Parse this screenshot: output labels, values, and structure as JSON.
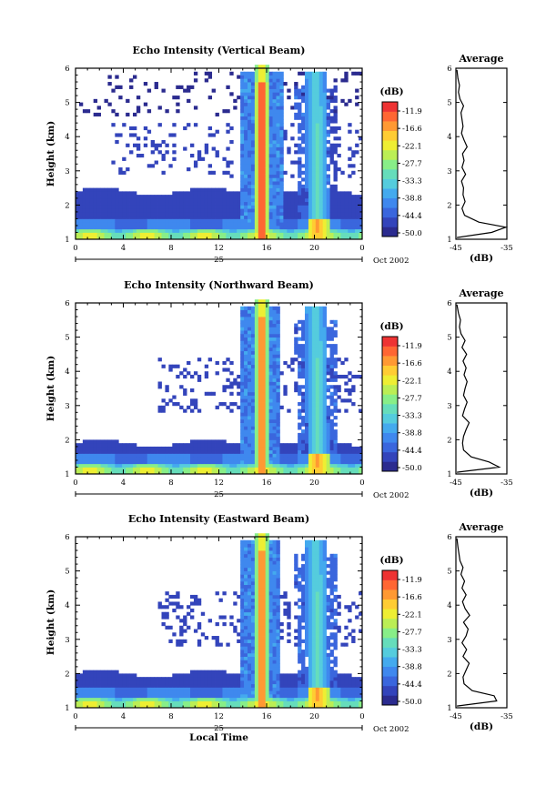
{
  "figure": {
    "xlabel": "Local Time",
    "date_label": "25",
    "month_label": "Oct 2002",
    "colorbar_unit": "(dB)",
    "colorbar_ticks": [
      "-11.9",
      "-16.6",
      "-22.1",
      "-27.7",
      "-33.3",
      "-38.8",
      "-44.4",
      "-50.0"
    ],
    "colors": [
      "#2b2b8f",
      "#3344bb",
      "#3a66dd",
      "#3f88ee",
      "#44aaee",
      "#55ccdd",
      "#66ddbb",
      "#88ee88",
      "#bbee55",
      "#eeee33",
      "#ffcc33",
      "#ff9933",
      "#ff6633",
      "#ee3333"
    ]
  },
  "chart_data": [
    {
      "type": "heatmap",
      "name": "vertical",
      "title": "Echo Intensity (Vertical Beam)",
      "xlabel": "",
      "ylabel": "Height (km)",
      "x_ticks": [
        "0",
        "4",
        "8",
        "12",
        "16",
        "20",
        "0"
      ],
      "y_ticks": [
        "1",
        "2",
        "3",
        "4",
        "5",
        "6"
      ],
      "xlim": [
        0,
        24
      ],
      "ylim": [
        1,
        6
      ],
      "zlim": [
        -50.0,
        -11.9
      ],
      "profile": {
        "title": "Average",
        "xlabel": "(dB)",
        "x_ticks": [
          "-45",
          "-35"
        ],
        "y_ticks": [
          "1",
          "2",
          "3",
          "4",
          "5",
          "6"
        ],
        "xlim": [
          -45,
          -35
        ],
        "height": [
          1.05,
          1.2,
          1.35,
          1.5,
          1.7,
          1.9,
          2.1,
          2.3,
          2.5,
          2.7,
          2.9,
          3.1,
          3.3,
          3.5,
          3.7,
          3.9,
          4.1,
          4.3,
          4.5,
          4.7,
          4.9,
          5.1,
          5.3,
          5.5,
          5.7,
          5.95
        ],
        "value": [
          -44.8,
          -38,
          -35.2,
          -40.5,
          -43.3,
          -43.8,
          -43.2,
          -43.6,
          -43.5,
          -43.9,
          -43.1,
          -43.8,
          -43.4,
          -43.7,
          -42.8,
          -43.4,
          -43.9,
          -43.6,
          -43.8,
          -44.0,
          -43.5,
          -44.2,
          -44.5,
          -44.3,
          -44.6,
          -44.8
        ]
      }
    },
    {
      "type": "heatmap",
      "name": "northward",
      "title": "Echo Intensity (Northward Beam)",
      "xlabel": "",
      "ylabel": "Height (km)",
      "x_ticks": [
        "0",
        "4",
        "8",
        "12",
        "16",
        "20",
        "0"
      ],
      "y_ticks": [
        "1",
        "2",
        "3",
        "4",
        "5",
        "6"
      ],
      "xlim": [
        0,
        24
      ],
      "ylim": [
        1,
        6
      ],
      "zlim": [
        -50.0,
        -11.9
      ],
      "profile": {
        "title": "Average",
        "xlabel": "(dB)",
        "x_ticks": [
          "-45",
          "-35"
        ],
        "y_ticks": [
          "1",
          "2",
          "3",
          "4",
          "5",
          "6"
        ],
        "xlim": [
          -45,
          -35
        ],
        "height": [
          1.05,
          1.2,
          1.35,
          1.5,
          1.7,
          1.9,
          2.1,
          2.3,
          2.5,
          2.7,
          2.9,
          3.1,
          3.3,
          3.5,
          3.7,
          3.9,
          4.1,
          4.3,
          4.5,
          4.7,
          4.9,
          5.1,
          5.3,
          5.5,
          5.7,
          5.95
        ],
        "value": [
          -44.8,
          -36.5,
          -38.5,
          -42.0,
          -43.5,
          -43.7,
          -43.5,
          -43.0,
          -42.4,
          -43.7,
          -43.3,
          -42.8,
          -43.5,
          -43.2,
          -42.8,
          -43.4,
          -43.0,
          -43.6,
          -42.9,
          -43.8,
          -43.2,
          -44.0,
          -44.3,
          -44.1,
          -44.5,
          -44.8
        ]
      }
    },
    {
      "type": "heatmap",
      "name": "eastward",
      "title": "Echo Intensity (Eastward Beam)",
      "xlabel": "Local Time",
      "ylabel": "Height (km)",
      "x_ticks": [
        "0",
        "4",
        "8",
        "12",
        "16",
        "20",
        "0"
      ],
      "y_ticks": [
        "1",
        "2",
        "3",
        "4",
        "5",
        "6"
      ],
      "xlim": [
        0,
        24
      ],
      "ylim": [
        1,
        6
      ],
      "zlim": [
        -50.0,
        -11.9
      ],
      "profile": {
        "title": "Average",
        "xlabel": "(dB)",
        "x_ticks": [
          "-45",
          "-35"
        ],
        "y_ticks": [
          "1",
          "2",
          "3",
          "4",
          "5",
          "6"
        ],
        "xlim": [
          -45,
          -35
        ],
        "height": [
          1.05,
          1.2,
          1.35,
          1.5,
          1.7,
          1.9,
          2.1,
          2.3,
          2.5,
          2.7,
          2.9,
          3.1,
          3.3,
          3.5,
          3.7,
          3.9,
          4.1,
          4.3,
          4.5,
          4.7,
          4.9,
          5.1,
          5.3,
          5.5,
          5.7,
          5.95
        ],
        "value": [
          -44.8,
          -37.0,
          -37.5,
          -41.8,
          -43.4,
          -43.6,
          -43.0,
          -42.4,
          -43.6,
          -42.9,
          -43.8,
          -43.0,
          -42.6,
          -43.5,
          -42.3,
          -43.2,
          -43.7,
          -43.0,
          -43.8,
          -43.3,
          -44.0,
          -43.6,
          -44.2,
          -44.4,
          -44.6,
          -44.8
        ]
      }
    }
  ]
}
